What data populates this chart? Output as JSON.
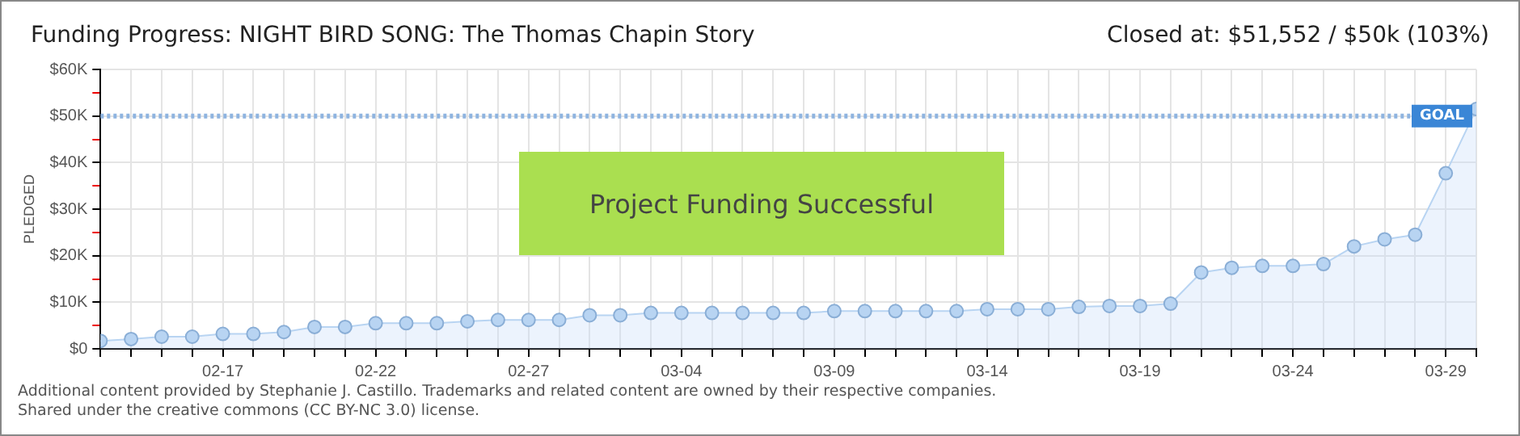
{
  "chart_data": {
    "type": "area",
    "title": "Funding Progress: NIGHT BIRD SONG: The Thomas Chapin Story",
    "subtitle": "Closed at:  $51,552 /  $50k (103%)",
    "ylabel": "PLEDGED",
    "x": [
      "--02-13",
      "--02-14",
      "--02-15",
      "--02-16",
      "--02-17",
      "--02-18",
      "--02-19",
      "--02-20",
      "--02-21",
      "--02-22",
      "--02-23",
      "--02-24",
      "--02-25",
      "--02-26",
      "--02-27",
      "--02-28",
      "--03-01",
      "--03-02",
      "--03-03",
      "--03-04",
      "--03-05",
      "--03-06",
      "--03-07",
      "--03-08",
      "--03-09",
      "--03-10",
      "--03-11",
      "--03-12",
      "--03-13",
      "--03-14",
      "--03-15",
      "--03-16",
      "--03-17",
      "--03-18",
      "--03-19",
      "--03-20",
      "--03-21",
      "--03-22",
      "--03-23",
      "--03-24",
      "--03-25",
      "--03-26",
      "--03-27",
      "--03-28",
      "--03-29",
      "--03-30"
    ],
    "series": [
      {
        "color": "#b8d4f2",
        "values": [
          1.7,
          2.1,
          2.6,
          2.6,
          3.2,
          3.2,
          3.6,
          4.7,
          4.7,
          5.5,
          5.5,
          5.5,
          5.9,
          6.2,
          6.2,
          6.2,
          7.2,
          7.2,
          7.7,
          7.7,
          7.7,
          7.7,
          7.7,
          7.7,
          8.1,
          8.1,
          8.1,
          8.1,
          8.1,
          8.5,
          8.5,
          8.5,
          9.0,
          9.2,
          9.2,
          9.7,
          16.4,
          17.4,
          17.8,
          17.8,
          18.2,
          22.0,
          23.5,
          24.5,
          37.7,
          51.5
        ]
      }
    ],
    "xlim": [
      "--02-13",
      "--03-30"
    ],
    "xticks": [
      {
        "value": "--02-13",
        "label": null
      },
      {
        "value": "--02-14",
        "label": null
      },
      {
        "value": "--02-15",
        "label": null
      },
      {
        "value": "--02-16",
        "label": null
      },
      {
        "value": "--02-17",
        "label": "02-17"
      },
      {
        "value": "--02-18",
        "label": null
      },
      {
        "value": "--02-19",
        "label": null
      },
      {
        "value": "--02-20",
        "label": null
      },
      {
        "value": "--02-21",
        "label": null
      },
      {
        "value": "--02-22",
        "label": "02-22"
      },
      {
        "value": "--02-23",
        "label": null
      },
      {
        "value": "--02-24",
        "label": null
      },
      {
        "value": "--02-25",
        "label": null
      },
      {
        "value": "--02-26",
        "label": null
      },
      {
        "value": "--02-27",
        "label": "02-27"
      },
      {
        "value": "--02-28",
        "label": null
      },
      {
        "value": "--03-01",
        "label": null
      },
      {
        "value": "--03-02",
        "label": null
      },
      {
        "value": "--03-03",
        "label": null
      },
      {
        "value": "--03-04",
        "label": "03-04"
      },
      {
        "value": "--03-05",
        "label": null
      },
      {
        "value": "--03-06",
        "label": null
      },
      {
        "value": "--03-07",
        "label": null
      },
      {
        "value": "--03-08",
        "label": null
      },
      {
        "value": "--03-09",
        "label": "03-09"
      },
      {
        "value": "--03-10",
        "label": null
      },
      {
        "value": "--03-11",
        "label": null
      },
      {
        "value": "--03-12",
        "label": null
      },
      {
        "value": "--03-13",
        "label": null
      },
      {
        "value": "--03-14",
        "label": "03-14"
      },
      {
        "value": "--03-15",
        "label": null
      },
      {
        "value": "--03-16",
        "label": null
      },
      {
        "value": "--03-17",
        "label": null
      },
      {
        "value": "--03-18",
        "label": null
      },
      {
        "value": "--03-19",
        "label": "03-19"
      },
      {
        "value": "--03-20",
        "label": null
      },
      {
        "value": "--03-21",
        "label": null
      },
      {
        "value": "--03-22",
        "label": null
      },
      {
        "value": "--03-23",
        "label": null
      },
      {
        "value": "--03-24",
        "label": "03-24"
      },
      {
        "value": "--03-25",
        "label": null
      },
      {
        "value": "--03-26",
        "label": null
      },
      {
        "value": "--03-27",
        "label": null
      },
      {
        "value": "--03-28",
        "label": null
      },
      {
        "value": "--03-29",
        "label": "03-29"
      },
      {
        "value": "--03-30",
        "label": null
      }
    ],
    "ylim": [
      0,
      60
    ],
    "yticks": [
      {
        "value": 0,
        "label": "$0"
      },
      {
        "value": 5,
        "label": null
      },
      {
        "value": 10,
        "label": "$10K"
      },
      {
        "value": 15,
        "label": null
      },
      {
        "value": 20,
        "label": "$20K"
      },
      {
        "value": 25,
        "label": null
      },
      {
        "value": 30,
        "label": "$30K"
      },
      {
        "value": 35,
        "label": null
      },
      {
        "value": 40,
        "label": "$40K"
      },
      {
        "value": 45,
        "label": null
      },
      {
        "value": 50,
        "label": "$50K"
      },
      {
        "value": 55,
        "label": null
      },
      {
        "value": 60,
        "label": "$60K"
      }
    ],
    "ref_lines": [
      {
        "axis": "y",
        "value": 50,
        "label": "GOAL",
        "color": "#8fb4e0",
        "line_style": "dotted"
      }
    ],
    "grid": true,
    "marker": "circle",
    "legend": false,
    "annotations": [
      "Project Funding Successful",
      "Additional content provided by Stephanie J. Castillo. Trademarks and related content are owned by their respective companies.",
      "Shared under the creative commons (CC BY-NC 3.0) license."
    ]
  }
}
